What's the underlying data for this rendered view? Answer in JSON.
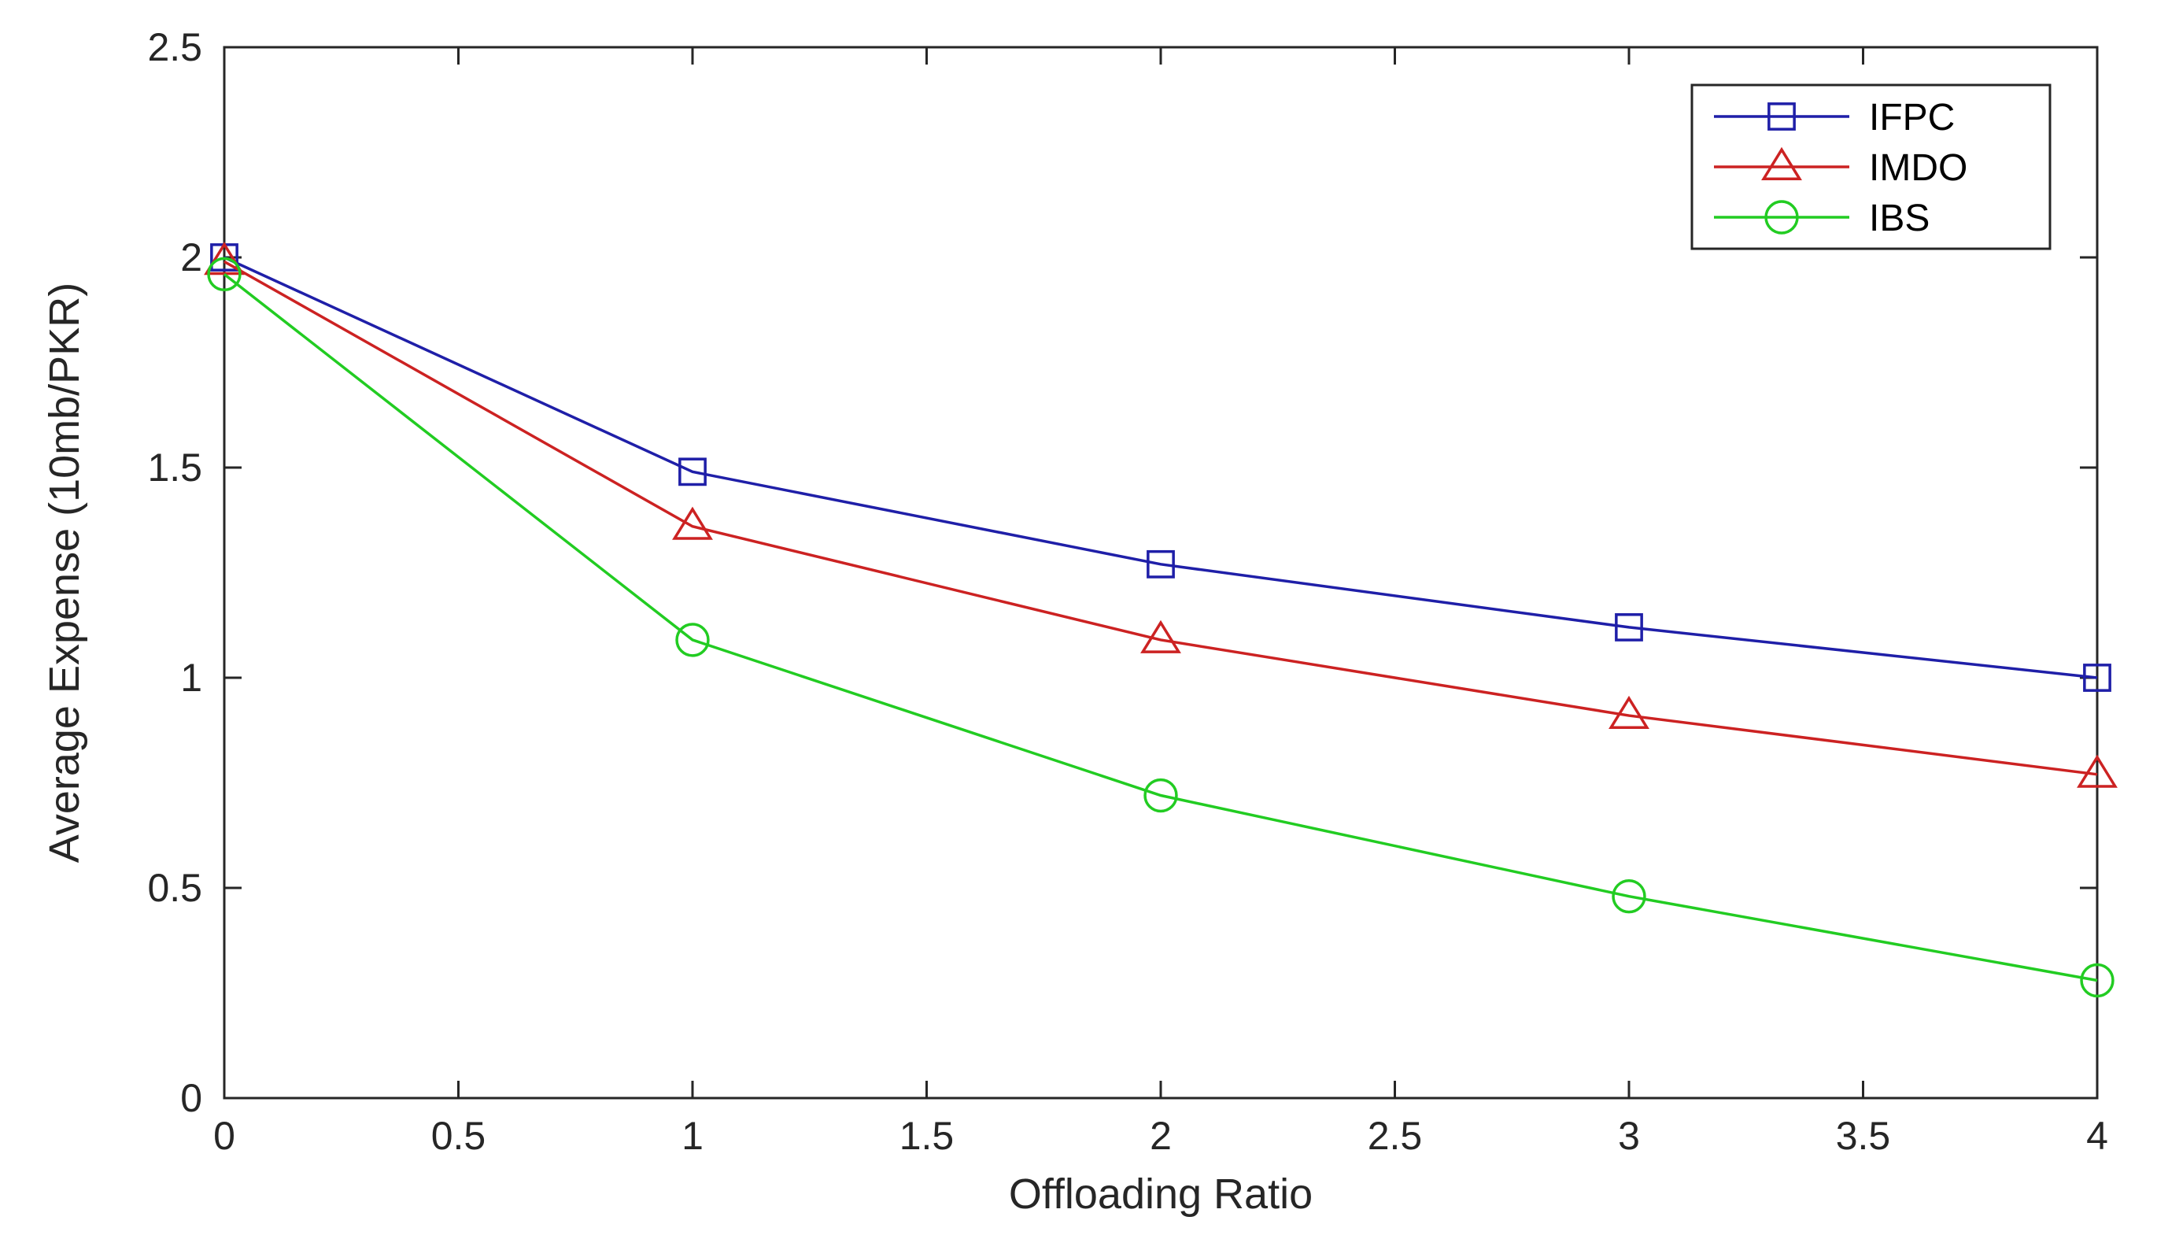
{
  "chart_data": {
    "type": "line",
    "title": "",
    "xlabel": "Offloading Ratio",
    "ylabel": "Average Expense (10mb/PKR)",
    "xlim": [
      0,
      4
    ],
    "ylim": [
      0,
      2.5
    ],
    "x_ticks": [
      0,
      0.5,
      1,
      1.5,
      2,
      2.5,
      3,
      3.5,
      4
    ],
    "x_tick_labels": [
      "0",
      "0.5",
      "1",
      "1.5",
      "2",
      "2.5",
      "3",
      "3.5",
      "4"
    ],
    "y_ticks": [
      0,
      0.5,
      1,
      1.5,
      2,
      2.5
    ],
    "y_tick_labels": [
      "0",
      "0.5",
      "1",
      "1.5",
      "2",
      "2.5"
    ],
    "grid": false,
    "legend_position": "top-right",
    "x": [
      0,
      1,
      2,
      3,
      4
    ],
    "series": [
      {
        "name": "IFPC",
        "color": "#1f1fa8",
        "marker": "square",
        "values": [
          2.0,
          1.49,
          1.27,
          1.12,
          1.0
        ]
      },
      {
        "name": "IMDO",
        "color": "#cc2222",
        "marker": "triangle",
        "values": [
          1.99,
          1.36,
          1.09,
          0.91,
          0.77
        ]
      },
      {
        "name": "IBS",
        "color": "#22cc22",
        "marker": "circle",
        "values": [
          1.96,
          1.09,
          0.72,
          0.48,
          0.28
        ]
      }
    ]
  }
}
